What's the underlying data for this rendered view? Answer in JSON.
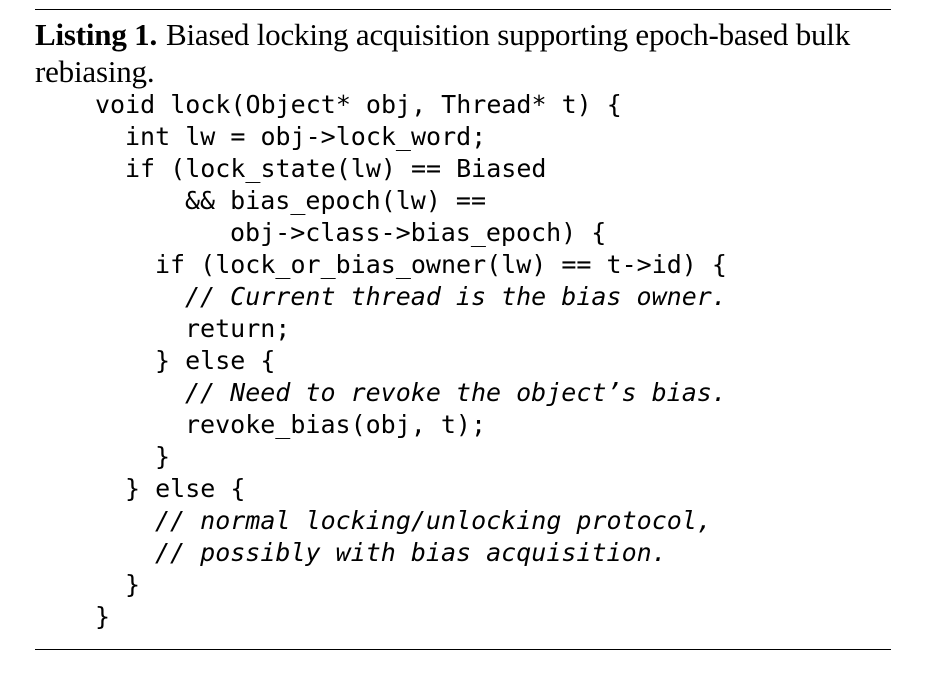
{
  "listing": {
    "label": "Listing 1.",
    "caption": "Biased locking acquisition supporting epoch-based bulk rebiasing."
  },
  "code_lines": [
    {
      "indent": 0,
      "text": "void lock(Object* obj, Thread* t) {",
      "kind": "code"
    },
    {
      "indent": 1,
      "text": "int lw = obj->lock_word;",
      "kind": "code"
    },
    {
      "indent": 1,
      "text": "if (lock_state(lw) == Biased",
      "kind": "code"
    },
    {
      "indent": 3,
      "text": "&& bias_epoch(lw) ==",
      "kind": "code"
    },
    {
      "indent": 4.5,
      "text": "obj->class->bias_epoch) {",
      "kind": "code"
    },
    {
      "indent": 2,
      "text": "if (lock_or_bias_owner(lw) == t->id) {",
      "kind": "code"
    },
    {
      "indent": 3,
      "text": "// Current thread is the bias owner.",
      "kind": "comment"
    },
    {
      "indent": 3,
      "text": "return;",
      "kind": "code"
    },
    {
      "indent": 2,
      "text": "} else {",
      "kind": "code"
    },
    {
      "indent": 3,
      "text": "// Need to revoke the object’s bias.",
      "kind": "comment"
    },
    {
      "indent": 3,
      "text": "revoke_bias(obj, t);",
      "kind": "code"
    },
    {
      "indent": 2,
      "text": "}",
      "kind": "code"
    },
    {
      "indent": 1,
      "text": "} else {",
      "kind": "code"
    },
    {
      "indent": 2,
      "text": "// normal locking/unlocking protocol,",
      "kind": "comment"
    },
    {
      "indent": 2,
      "text": "// possibly with bias acquisition.",
      "kind": "comment"
    },
    {
      "indent": 1,
      "text": "}",
      "kind": "code"
    },
    {
      "indent": 0,
      "text": "}",
      "kind": "code"
    }
  ]
}
